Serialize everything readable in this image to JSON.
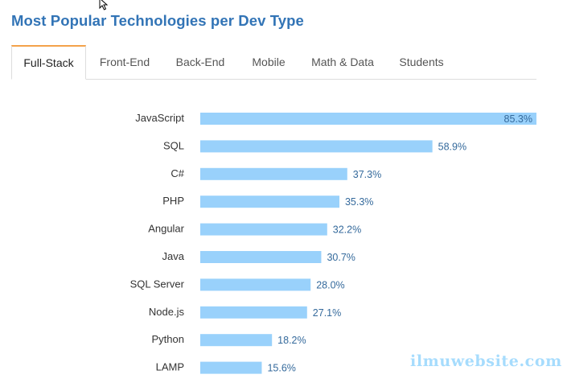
{
  "header": {
    "title": "Most Popular Technologies per Dev Type"
  },
  "tabs": [
    {
      "label": "Full-Stack",
      "active": true
    },
    {
      "label": "Front-End",
      "active": false
    },
    {
      "label": "Back-End",
      "active": false
    },
    {
      "label": "Mobile",
      "active": false
    },
    {
      "label": "Math & Data",
      "active": false
    },
    {
      "label": "Students",
      "active": false
    }
  ],
  "chart_data": {
    "type": "bar",
    "orientation": "horizontal",
    "title": "",
    "xlabel": "",
    "ylabel": "",
    "categories": [
      "JavaScript",
      "SQL",
      "C#",
      "PHP",
      "Angular",
      "Java",
      "SQL Server",
      "Node.js",
      "Python",
      "LAMP"
    ],
    "values": [
      85.3,
      58.9,
      37.3,
      35.3,
      32.2,
      30.7,
      28.0,
      27.1,
      18.2,
      15.6
    ],
    "value_labels": [
      "85.3%",
      "58.9%",
      "37.3%",
      "35.3%",
      "32.2%",
      "30.7%",
      "28.0%",
      "27.1%",
      "18.2%",
      "15.6%"
    ],
    "xlim": [
      0,
      85.3
    ],
    "grid": false,
    "legend": "none"
  },
  "watermark": "ilmuwebsite.com",
  "colors": {
    "title": "#3274b6",
    "bar": "#99d1fb",
    "value_text": "#356a9c",
    "active_tab_accent": "#f4a24a",
    "watermark": "#a6dcfd"
  }
}
